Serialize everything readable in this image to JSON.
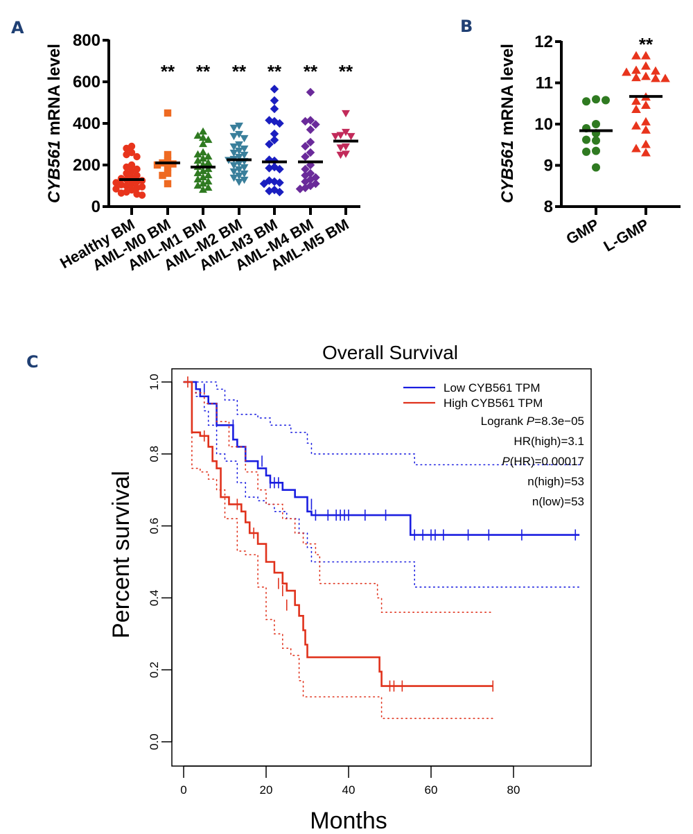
{
  "panels": {
    "a": {
      "letter": "A"
    },
    "b": {
      "letter": "B"
    },
    "c": {
      "letter": "C"
    }
  },
  "chart_data": [
    {
      "id": "A",
      "type": "scatter",
      "subtype": "dot-plot",
      "title": "",
      "ylabel_italic": "CYB561",
      "ylabel_rest": " mRNA level",
      "xlabel": "",
      "ylim": [
        0,
        800
      ],
      "yticks": [
        0,
        200,
        400,
        600,
        800
      ],
      "categories": [
        "Healthy BM",
        "AML-M0 BM",
        "AML-M1 BM",
        "AML-M2 BM",
        "AML-M3 BM",
        "AML-M4 BM",
        "AML-M5 BM"
      ],
      "significance": [
        "",
        "**",
        "**",
        "**",
        "**",
        "**",
        "**"
      ],
      "series": [
        {
          "name": "Healthy BM",
          "color": "#e8341c",
          "marker": "circle",
          "median": 130,
          "values": [
            290,
            280,
            260,
            250,
            240,
            200,
            190,
            180,
            170,
            160,
            150,
            140,
            135,
            130,
            125,
            120,
            115,
            110,
            105,
            100,
            95,
            90,
            85,
            80,
            70,
            65,
            60,
            55
          ]
        },
        {
          "name": "AML-M0 BM",
          "color": "#ee6a22",
          "marker": "square",
          "median": 210,
          "values": [
            450,
            250,
            220,
            210,
            205,
            200,
            190,
            160,
            150,
            110
          ]
        },
        {
          "name": "AML-M1 BM",
          "color": "#2f7a21",
          "marker": "triangle-up",
          "median": 190,
          "values": [
            360,
            340,
            330,
            320,
            300,
            260,
            250,
            240,
            230,
            220,
            210,
            200,
            190,
            180,
            170,
            160,
            150,
            140,
            130,
            120,
            110,
            100,
            90,
            80
          ]
        },
        {
          "name": "AML-M2 BM",
          "color": "#3a7f9b",
          "marker": "triangle-down",
          "median": 225,
          "values": [
            390,
            380,
            350,
            340,
            330,
            300,
            290,
            280,
            270,
            260,
            250,
            240,
            230,
            225,
            220,
            210,
            200,
            190,
            180,
            170,
            160,
            150,
            140,
            130,
            120
          ]
        },
        {
          "name": "AML-M3 BM",
          "color": "#1a1ec0",
          "marker": "diamond",
          "median": 215,
          "values": [
            565,
            510,
            470,
            410,
            415,
            400,
            350,
            320,
            300,
            220,
            225,
            190,
            185,
            180,
            120,
            125,
            115,
            110,
            80,
            75,
            70
          ]
        },
        {
          "name": "AML-M4 BM",
          "color": "#6a2a9a",
          "marker": "diamond",
          "median": 215,
          "values": [
            550,
            415,
            410,
            395,
            370,
            310,
            290,
            260,
            240,
            200,
            180,
            160,
            150,
            140,
            130,
            120,
            110,
            100,
            90,
            85
          ]
        },
        {
          "name": "AML-M5 BM",
          "color": "#c22a5a",
          "marker": "triangle-down",
          "median": 315,
          "values": [
            450,
            360,
            345,
            340,
            340,
            290,
            285,
            255,
            250
          ]
        }
      ]
    },
    {
      "id": "B",
      "type": "scatter",
      "subtype": "dot-plot",
      "title": "",
      "ylabel_italic": "CYB561",
      "ylabel_rest": " mRNA level",
      "xlabel": "",
      "ylim": [
        8,
        12
      ],
      "yticks": [
        8,
        9,
        10,
        11,
        12
      ],
      "categories": [
        "GMP",
        "L-GMP"
      ],
      "significance": [
        "",
        "**"
      ],
      "series": [
        {
          "name": "GMP",
          "color": "#2f7a21",
          "marker": "circle",
          "median": 9.84,
          "values": [
            10.6,
            10.55,
            10.58,
            10.0,
            9.9,
            9.78,
            9.6,
            9.62,
            9.35,
            9.33,
            8.95
          ]
        },
        {
          "name": "L-GMP",
          "color": "#e8341c",
          "marker": "triangle-up",
          "median": 10.67,
          "values": [
            11.65,
            11.65,
            11.4,
            11.3,
            11.28,
            11.25,
            11.15,
            11.12,
            11.1,
            11.1,
            10.65,
            10.55,
            10.45,
            10.35,
            10.05,
            9.95,
            9.85,
            9.5,
            9.4,
            9.3
          ]
        }
      ]
    },
    {
      "id": "C",
      "type": "line",
      "subtype": "kaplan-meier",
      "title": "Overall Survival",
      "xlabel": "Months",
      "ylabel": "Percent survival",
      "xlim": [
        0,
        100
      ],
      "ylim": [
        0,
        1.0
      ],
      "xticks": [
        0,
        20,
        40,
        60,
        80
      ],
      "yticks": [
        "0.0",
        "0.2",
        "0.4",
        "0.6",
        "0.8",
        "1.0"
      ],
      "legend_position": "top-right",
      "legend": [
        {
          "label": "Low CYB561 TPM",
          "color": "#1a1ee0"
        },
        {
          "label": "High CYB561 TPM",
          "color": "#e0321c"
        }
      ],
      "stats": [
        {
          "prefix": "Logrank ",
          "italic": "P",
          "suffix": "=8.3e−05"
        },
        {
          "prefix": "HR(high)=3.1",
          "italic": "",
          "suffix": ""
        },
        {
          "prefix": "",
          "italic": "P",
          "suffix": "(HR)=0.00017"
        },
        {
          "prefix": "n(high)=53",
          "italic": "",
          "suffix": ""
        },
        {
          "prefix": "n(low)=53",
          "italic": "",
          "suffix": ""
        }
      ],
      "series": [
        {
          "name": "Low CYB561 TPM",
          "color": "#1a1ee0",
          "steps": [
            [
              0,
              1.0
            ],
            [
              3,
              0.98
            ],
            [
              4,
              0.96
            ],
            [
              6,
              0.94
            ],
            [
              8,
              0.88
            ],
            [
              12,
              0.84
            ],
            [
              13,
              0.82
            ],
            [
              15,
              0.78
            ],
            [
              18,
              0.76
            ],
            [
              20,
              0.74
            ],
            [
              21,
              0.72
            ],
            [
              24,
              0.7
            ],
            [
              27,
              0.68
            ],
            [
              30,
              0.64
            ],
            [
              31,
              0.63
            ],
            [
              55,
              0.575
            ],
            [
              96,
              0.575
            ]
          ],
          "censored": [
            [
              5,
              0.98
            ],
            [
              12,
              0.88
            ],
            [
              19,
              0.78
            ],
            [
              21,
              0.72
            ],
            [
              22,
              0.72
            ],
            [
              23,
              0.72
            ],
            [
              31,
              0.66
            ],
            [
              32,
              0.63
            ],
            [
              35,
              0.63
            ],
            [
              37,
              0.63
            ],
            [
              38,
              0.63
            ],
            [
              39,
              0.63
            ],
            [
              40,
              0.63
            ],
            [
              44,
              0.63
            ],
            [
              49,
              0.63
            ],
            [
              56,
              0.575
            ],
            [
              58,
              0.575
            ],
            [
              60,
              0.575
            ],
            [
              61,
              0.575
            ],
            [
              63,
              0.575
            ],
            [
              69,
              0.575
            ],
            [
              74,
              0.575
            ],
            [
              82,
              0.575
            ],
            [
              95,
              0.575
            ]
          ],
          "ci_upper": [
            [
              0,
              1.0
            ],
            [
              6,
              1.0
            ],
            [
              8,
              0.98
            ],
            [
              10,
              0.95
            ],
            [
              13,
              0.91
            ],
            [
              18,
              0.9
            ],
            [
              21,
              0.88
            ],
            [
              26,
              0.86
            ],
            [
              30,
              0.83
            ],
            [
              31,
              0.8
            ],
            [
              55,
              0.8
            ],
            [
              56,
              0.77
            ],
            [
              96,
              0.77
            ]
          ],
          "ci_lower": [
            [
              0,
              1.0
            ],
            [
              3,
              0.96
            ],
            [
              5,
              0.92
            ],
            [
              6,
              0.88
            ],
            [
              8,
              0.8
            ],
            [
              10,
              0.78
            ],
            [
              13,
              0.72
            ],
            [
              15,
              0.68
            ],
            [
              18,
              0.67
            ],
            [
              20,
              0.66
            ],
            [
              22,
              0.64
            ],
            [
              25,
              0.62
            ],
            [
              28,
              0.58
            ],
            [
              30,
              0.54
            ],
            [
              31,
              0.5
            ],
            [
              55,
              0.5
            ],
            [
              56,
              0.43
            ],
            [
              96,
              0.43
            ]
          ]
        },
        {
          "name": "High CYB561 TPM",
          "color": "#e0321c",
          "steps": [
            [
              0,
              1.0
            ],
            [
              2,
              0.86
            ],
            [
              4,
              0.85
            ],
            [
              6,
              0.82
            ],
            [
              7,
              0.78
            ],
            [
              8,
              0.76
            ],
            [
              9,
              0.68
            ],
            [
              11,
              0.66
            ],
            [
              14,
              0.64
            ],
            [
              15,
              0.61
            ],
            [
              16,
              0.58
            ],
            [
              18,
              0.55
            ],
            [
              20,
              0.5
            ],
            [
              22,
              0.47
            ],
            [
              24,
              0.44
            ],
            [
              25,
              0.42
            ],
            [
              27,
              0.38
            ],
            [
              28,
              0.35
            ],
            [
              29,
              0.31
            ],
            [
              29.5,
              0.27
            ],
            [
              30,
              0.235
            ],
            [
              47,
              0.235
            ],
            [
              47.5,
              0.195
            ],
            [
              48,
              0.155
            ],
            [
              75,
              0.155
            ]
          ],
          "censored": [
            [
              1,
              1.0
            ],
            [
              5,
              0.85
            ],
            [
              13,
              0.66
            ],
            [
              17,
              0.58
            ],
            [
              23,
              0.44
            ],
            [
              24,
              0.42
            ],
            [
              25,
              0.38
            ],
            [
              50,
              0.155
            ],
            [
              51,
              0.155
            ],
            [
              53,
              0.155
            ],
            [
              75,
              0.155
            ]
          ],
          "ci_upper": [
            [
              0,
              1.0
            ],
            [
              2,
              0.97
            ],
            [
              5,
              0.94
            ],
            [
              8,
              0.89
            ],
            [
              11,
              0.82
            ],
            [
              15,
              0.75
            ],
            [
              18,
              0.7
            ],
            [
              20,
              0.66
            ],
            [
              24,
              0.62
            ],
            [
              27,
              0.58
            ],
            [
              29,
              0.55
            ],
            [
              32,
              0.52
            ],
            [
              33,
              0.44
            ],
            [
              46,
              0.44
            ],
            [
              47,
              0.4
            ],
            [
              48,
              0.36
            ],
            [
              75,
              0.36
            ]
          ],
          "ci_lower": [
            [
              0,
              1.0
            ],
            [
              2,
              0.76
            ],
            [
              4,
              0.75
            ],
            [
              6,
              0.73
            ],
            [
              8,
              0.7
            ],
            [
              10,
              0.62
            ],
            [
              13,
              0.53
            ],
            [
              15,
              0.52
            ],
            [
              18,
              0.43
            ],
            [
              20,
              0.34
            ],
            [
              22,
              0.3
            ],
            [
              24,
              0.26
            ],
            [
              26,
              0.24
            ],
            [
              28,
              0.17
            ],
            [
              29,
              0.125
            ],
            [
              47,
              0.125
            ],
            [
              48,
              0.065
            ],
            [
              75,
              0.065
            ]
          ]
        }
      ]
    }
  ]
}
